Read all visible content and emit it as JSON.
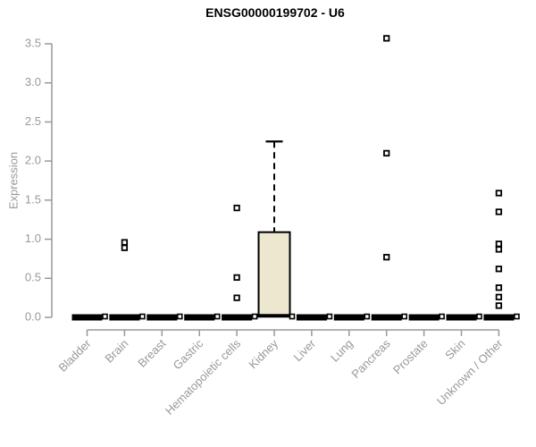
{
  "page": {
    "background": "#ffffff"
  },
  "chart_data": {
    "type": "boxplot",
    "title": "ENSG00000199702 - U6",
    "ylabel": "Expression",
    "xlabel": "",
    "ylim": [
      0,
      3.5
    ],
    "ytick_labels": [
      "0.0",
      "0.5",
      "1.0",
      "1.5",
      "2.0",
      "2.5",
      "3.0",
      "3.5"
    ],
    "grid": false,
    "legend": "none",
    "categories": [
      "Bladder",
      "Brain",
      "Breast",
      "Gastric",
      "Hematopoietic cells",
      "Kidney",
      "Liver",
      "Lung",
      "Pancreas",
      "Prostate",
      "Skin",
      "Unknown / Other"
    ],
    "boxes": [
      {
        "category": "Bladder",
        "low": 0,
        "q1": 0,
        "median": 0,
        "q3": 0,
        "high": 0,
        "outliers": []
      },
      {
        "category": "Brain",
        "low": 0,
        "q1": 0,
        "median": 0,
        "q3": 0,
        "high": 0,
        "outliers": [
          0.96,
          0.89
        ]
      },
      {
        "category": "Breast",
        "low": 0,
        "q1": 0,
        "median": 0,
        "q3": 0,
        "high": 0,
        "outliers": []
      },
      {
        "category": "Gastric",
        "low": 0,
        "q1": 0,
        "median": 0,
        "q3": 0,
        "high": 0,
        "outliers": []
      },
      {
        "category": "Hematopoietic cells",
        "low": 0,
        "q1": 0,
        "median": 0,
        "q3": 0,
        "high": 0,
        "outliers": [
          1.4,
          0.51,
          0.25
        ]
      },
      {
        "category": "Kidney",
        "low": 0,
        "q1": 0.02,
        "median": 0.02,
        "q3": 1.09,
        "high": 2.25,
        "outliers": []
      },
      {
        "category": "Liver",
        "low": 0,
        "q1": 0,
        "median": 0,
        "q3": 0,
        "high": 0,
        "outliers": []
      },
      {
        "category": "Lung",
        "low": 0,
        "q1": 0,
        "median": 0,
        "q3": 0,
        "high": 0,
        "outliers": []
      },
      {
        "category": "Pancreas",
        "low": 0,
        "q1": 0,
        "median": 0,
        "q3": 0,
        "high": 0,
        "outliers": [
          3.57,
          2.1,
          0.77
        ]
      },
      {
        "category": "Prostate",
        "low": 0,
        "q1": 0,
        "median": 0,
        "q3": 0,
        "high": 0,
        "outliers": []
      },
      {
        "category": "Skin",
        "low": 0,
        "q1": 0,
        "median": 0,
        "q3": 0,
        "high": 0,
        "outliers": []
      },
      {
        "category": "Unknown / Other",
        "low": 0,
        "q1": 0,
        "median": 0,
        "q3": 0,
        "high": 0,
        "outliers": [
          1.59,
          1.35,
          0.94,
          0.87,
          0.62,
          0.38,
          0.26,
          0.15
        ]
      }
    ],
    "colors": {
      "box_fill": "#ece7ce",
      "box_border": "#000000",
      "whisker": "#000000",
      "median": "#000000",
      "outlier_border": "#000000",
      "outlier_fill": "#ffffff",
      "axis": "#999999",
      "tick_label": "#999999",
      "title": "#000000"
    }
  }
}
